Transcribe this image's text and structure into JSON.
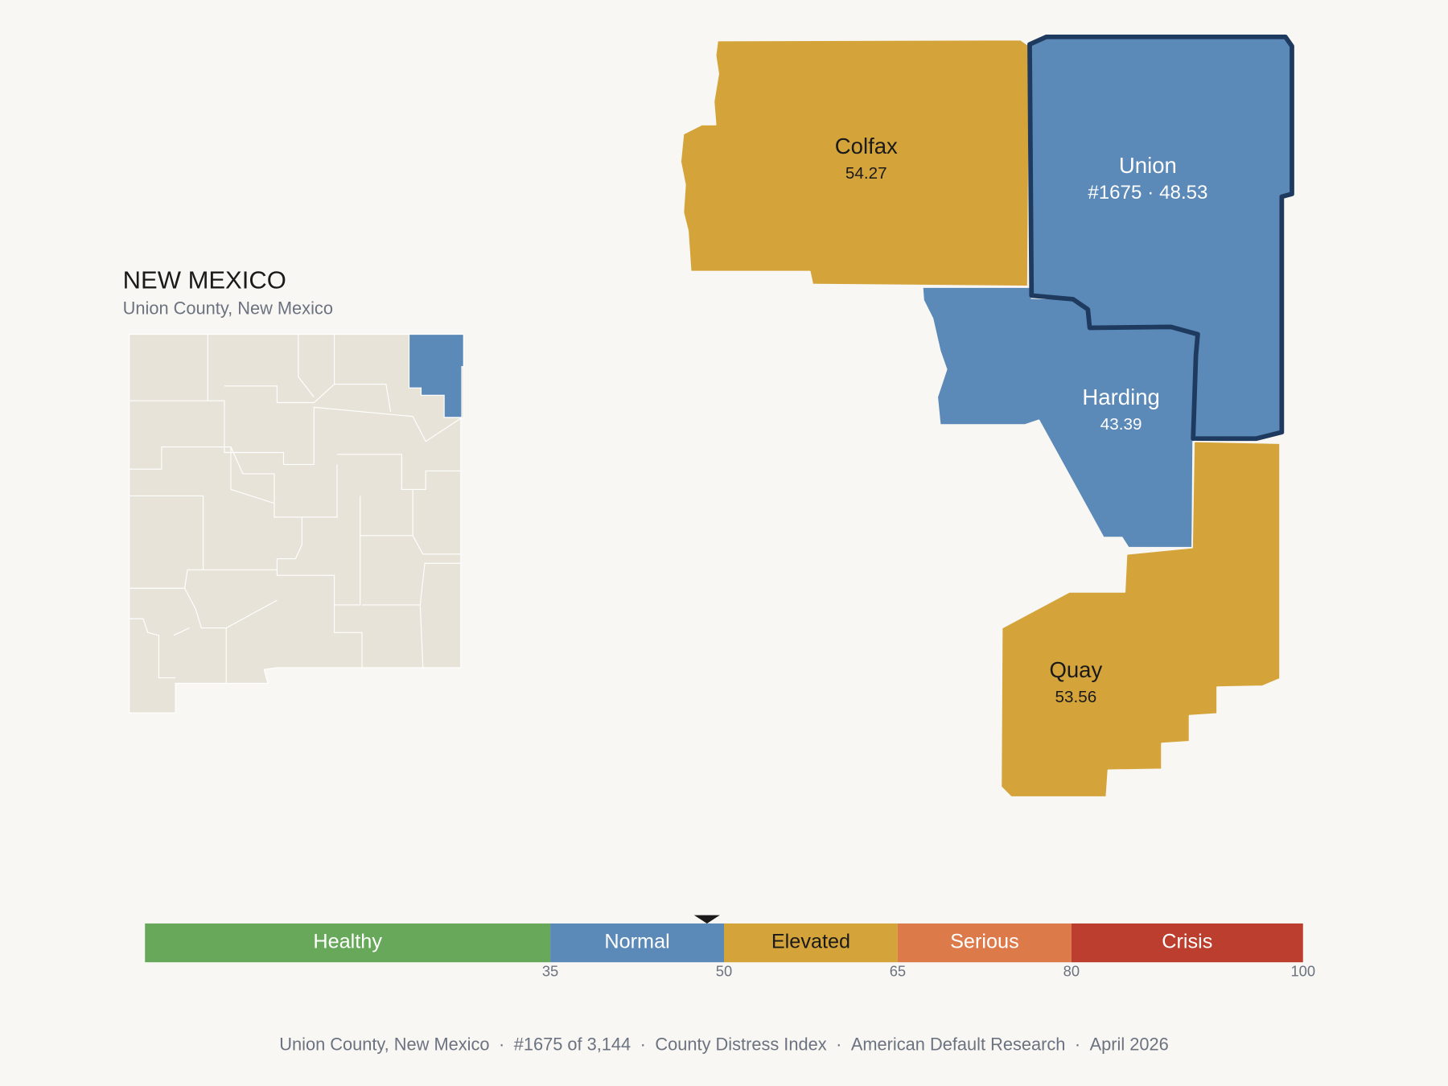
{
  "header": {
    "title": "NEW MEXICO",
    "subtitle": "Union County, New Mexico"
  },
  "counties": [
    {
      "name": "Colfax",
      "score": 54.27,
      "color": "#d4a43b"
    },
    {
      "name": "Harding",
      "score": 43.39,
      "color": "#5b89b8"
    },
    {
      "name": "Union",
      "rank": "#1675",
      "score": 48.53,
      "color": "#5b89b8",
      "selected": true
    },
    {
      "name": "Quay",
      "score": 53.56,
      "color": "#d4a43b"
    }
  ],
  "separator": "·",
  "scale": {
    "xlim": [
      0,
      100
    ],
    "bands": [
      {
        "label": "Healthy",
        "to": 35,
        "color": "#67a85a"
      },
      {
        "label": "Normal",
        "to": 50,
        "color": "#5b89b8"
      },
      {
        "label": "Elevated",
        "to": 65,
        "color": "#d4a43b"
      },
      {
        "label": "Serious",
        "to": 80,
        "color": "#dd7a4a"
      },
      {
        "label": "Crisis",
        "to": 100,
        "color": "#bb3e2e"
      }
    ]
  },
  "footer": [
    "Union County, New Mexico",
    "#1675 of 3,144",
    "County Distress Index",
    "American Default Research",
    "April 2026"
  ]
}
